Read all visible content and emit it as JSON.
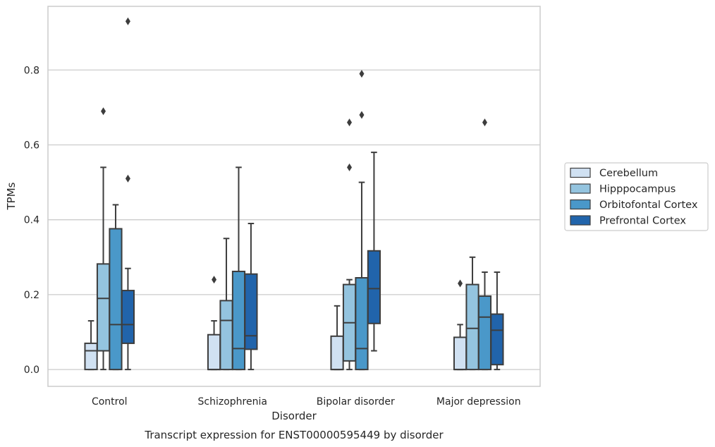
{
  "chart_data": {
    "type": "box",
    "caption": "Transcript expression for ENST00000595449 by disorder",
    "xlabel": "Disorder",
    "ylabel": "TPMs",
    "ylim": [
      -0.045,
      0.97
    ],
    "yticks": [
      0.0,
      0.2,
      0.4,
      0.6,
      0.8
    ],
    "yticklabels": [
      "0.0",
      "0.2",
      "0.4",
      "0.6",
      "0.8"
    ],
    "grid": "horizontal",
    "legend_position": "right",
    "categories": [
      "Control",
      "Schizophrenia",
      "Bipolar disorder",
      "Major depression"
    ],
    "series": [
      {
        "name": "Cerebellum",
        "color": "#d0e1f2",
        "boxes": [
          {
            "whislo": 0.0,
            "q1": 0.0,
            "med": 0.05,
            "q3": 0.07,
            "whishi": 0.13,
            "fliers": []
          },
          {
            "whislo": 0.0,
            "q1": 0.0,
            "med": 0.0,
            "q3": 0.093,
            "whishi": 0.13,
            "fliers": [
              0.24
            ]
          },
          {
            "whislo": 0.0,
            "q1": 0.0,
            "med": 0.0,
            "q3": 0.089,
            "whishi": 0.17,
            "fliers": []
          },
          {
            "whislo": 0.0,
            "q1": 0.0,
            "med": 0.0,
            "q3": 0.086,
            "whishi": 0.12,
            "fliers": [
              0.23
            ]
          }
        ]
      },
      {
        "name": "Hipppocampus",
        "color": "#94c4df",
        "boxes": [
          {
            "whislo": 0.0,
            "q1": 0.05,
            "med": 0.19,
            "q3": 0.282,
            "whishi": 0.54,
            "fliers": [
              0.69
            ]
          },
          {
            "whislo": 0.0,
            "q1": 0.0,
            "med": 0.131,
            "q3": 0.184,
            "whishi": 0.35,
            "fliers": []
          },
          {
            "whislo": 0.0,
            "q1": 0.023,
            "med": 0.125,
            "q3": 0.227,
            "whishi": 0.24,
            "fliers": [
              0.54,
              0.66
            ]
          },
          {
            "whislo": 0.0,
            "q1": 0.0,
            "med": 0.11,
            "q3": 0.227,
            "whishi": 0.3,
            "fliers": []
          }
        ]
      },
      {
        "name": "Orbitofontal Cortex",
        "color": "#4a98c9",
        "boxes": [
          {
            "whislo": 0.0,
            "q1": 0.0,
            "med": 0.12,
            "q3": 0.376,
            "whishi": 0.44,
            "fliers": []
          },
          {
            "whislo": 0.0,
            "q1": 0.0,
            "med": 0.056,
            "q3": 0.262,
            "whishi": 0.54,
            "fliers": []
          },
          {
            "whislo": 0.0,
            "q1": 0.0,
            "med": 0.056,
            "q3": 0.245,
            "whishi": 0.5,
            "fliers": [
              0.68,
              0.79
            ]
          },
          {
            "whislo": 0.0,
            "q1": 0.0,
            "med": 0.14,
            "q3": 0.196,
            "whishi": 0.26,
            "fliers": [
              0.66
            ]
          }
        ]
      },
      {
        "name": "Prefrontal Cortex",
        "color": "#2164ab",
        "boxes": [
          {
            "whislo": 0.0,
            "q1": 0.07,
            "med": 0.12,
            "q3": 0.211,
            "whishi": 0.27,
            "fliers": [
              0.51,
              0.93
            ]
          },
          {
            "whislo": 0.0,
            "q1": 0.054,
            "med": 0.09,
            "q3": 0.255,
            "whishi": 0.39,
            "fliers": []
          },
          {
            "whislo": 0.05,
            "q1": 0.123,
            "med": 0.216,
            "q3": 0.317,
            "whishi": 0.58,
            "fliers": []
          },
          {
            "whislo": 0.0,
            "q1": 0.013,
            "med": 0.105,
            "q3": 0.148,
            "whishi": 0.26,
            "fliers": []
          }
        ]
      }
    ]
  }
}
